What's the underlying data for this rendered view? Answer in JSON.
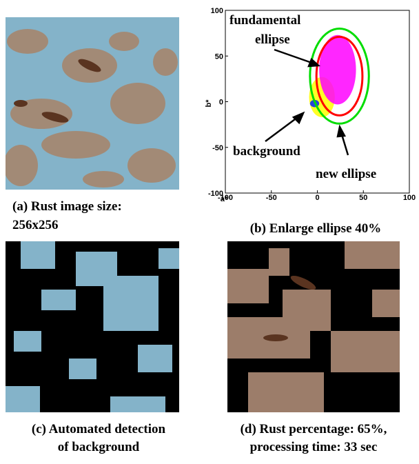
{
  "panels": {
    "a": {
      "caption": [
        "(a) Rust image size:",
        "256x256"
      ]
    },
    "b": {
      "caption": "(b) Enlarge ellipse 40%"
    },
    "c": {
      "caption": [
        "(c) Automated detection",
        "of background"
      ]
    },
    "d": {
      "caption": [
        "(d) Rust percentage: 65%,",
        "processing time: 33 sec"
      ]
    }
  },
  "chart_data": {
    "type": "scatter",
    "x_label": "a*",
    "y_label": "b*",
    "xlim": [
      -100,
      100
    ],
    "ylim": [
      -100,
      100
    ],
    "xticks": [
      -100,
      -50,
      0,
      50,
      100
    ],
    "yticks": [
      -100,
      -50,
      0,
      50,
      100
    ],
    "annotations": [
      "fundamental",
      "ellipse",
      "background",
      "new ellipse"
    ],
    "clusters": [
      {
        "color": "#ffff00",
        "cx": 5,
        "cy": 5,
        "rx": 14,
        "ry": 22
      },
      {
        "color": "#ff00ff",
        "cx": 22,
        "cy": 35,
        "rx": 20,
        "ry": 38
      },
      {
        "color": "#0022ff",
        "cx": -3,
        "cy": -2,
        "rx": 5,
        "ry": 4
      }
    ],
    "ellipses": [
      {
        "color": "#00dd00",
        "cx": 24,
        "cy": 28,
        "rx": 32,
        "ry": 52
      },
      {
        "color": "#ff0000",
        "cx": 24,
        "cy": 28,
        "rx": 25,
        "ry": 43
      }
    ]
  }
}
